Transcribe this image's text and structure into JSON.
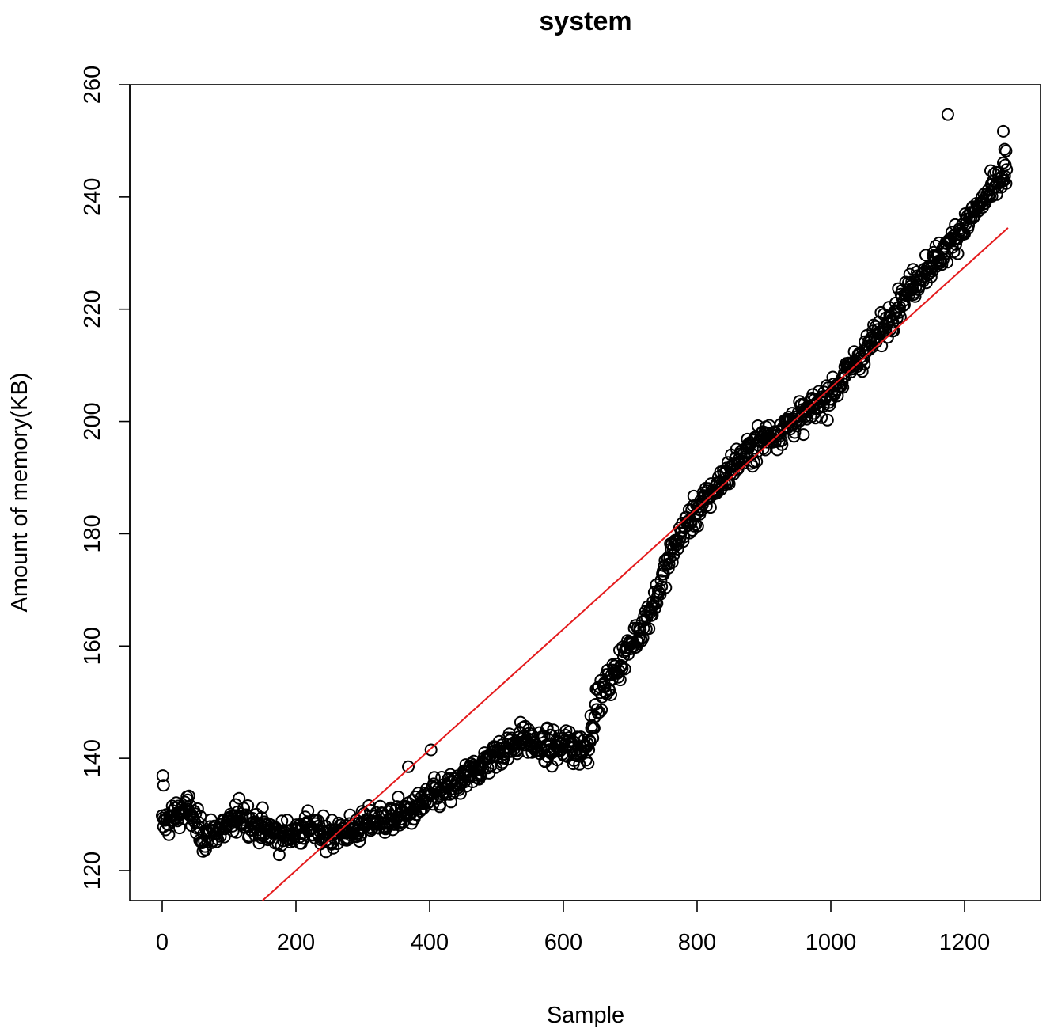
{
  "chart_data": {
    "type": "scatter",
    "title": "system",
    "xlabel": "Sample",
    "ylabel": "Amount of memory(KB)",
    "xlim": [
      -50,
      1310
    ],
    "ylim": [
      115,
      260
    ],
    "x_ticks": [
      0,
      200,
      400,
      600,
      800,
      1000,
      1200
    ],
    "x_tick_labels": [
      "0",
      "200",
      "400",
      "600",
      "800",
      "1000",
      "1200"
    ],
    "y_ticks": [
      120,
      140,
      160,
      180,
      200,
      220,
      240,
      260
    ],
    "y_tick_labels": [
      "120",
      "140",
      "160",
      "180",
      "200",
      "220",
      "240",
      "260"
    ],
    "grid": false,
    "series": [
      {
        "type": "scatter",
        "marker": "open-circle",
        "color": "#000000",
        "points_note_count": 1264,
        "anchor_points": [
          [
            0,
            128
          ],
          [
            20,
            130
          ],
          [
            40,
            131
          ],
          [
            60,
            126
          ],
          [
            80,
            127
          ],
          [
            100,
            128
          ],
          [
            120,
            130
          ],
          [
            140,
            128
          ],
          [
            160,
            127
          ],
          [
            180,
            126
          ],
          [
            200,
            127
          ],
          [
            220,
            128
          ],
          [
            240,
            126
          ],
          [
            260,
            127
          ],
          [
            280,
            127
          ],
          [
            300,
            128
          ],
          [
            320,
            129
          ],
          [
            340,
            129
          ],
          [
            360,
            130
          ],
          [
            380,
            131
          ],
          [
            400,
            133
          ],
          [
            420,
            134
          ],
          [
            440,
            135
          ],
          [
            460,
            137
          ],
          [
            480,
            139
          ],
          [
            500,
            141
          ],
          [
            520,
            142
          ],
          [
            540,
            144
          ],
          [
            560,
            142
          ],
          [
            580,
            142
          ],
          [
            600,
            142
          ],
          [
            620,
            142
          ],
          [
            635,
            142
          ],
          [
            650,
            150
          ],
          [
            680,
            156
          ],
          [
            700,
            160
          ],
          [
            720,
            164
          ],
          [
            740,
            169
          ],
          [
            760,
            176
          ],
          [
            780,
            181
          ],
          [
            800,
            184
          ],
          [
            820,
            187
          ],
          [
            840,
            190
          ],
          [
            860,
            193
          ],
          [
            880,
            195
          ],
          [
            900,
            197
          ],
          [
            920,
            198
          ],
          [
            940,
            200
          ],
          [
            960,
            201
          ],
          [
            980,
            203
          ],
          [
            1000,
            205
          ],
          [
            1020,
            208
          ],
          [
            1040,
            211
          ],
          [
            1060,
            214
          ],
          [
            1080,
            217
          ],
          [
            1100,
            221
          ],
          [
            1120,
            224
          ],
          [
            1140,
            227
          ],
          [
            1160,
            229
          ],
          [
            1180,
            232
          ],
          [
            1200,
            235
          ],
          [
            1220,
            238
          ],
          [
            1240,
            241
          ],
          [
            1260,
            244
          ]
        ],
        "outliers": [
          [
            1175,
            254.7
          ],
          [
            1258,
            251.7
          ],
          [
            1260,
            248.5
          ],
          [
            1262,
            248.2
          ],
          [
            402,
            141.5
          ],
          [
            368,
            138.5
          ],
          [
            1,
            136.9
          ],
          [
            2,
            135.2
          ]
        ]
      },
      {
        "type": "line",
        "color": "#e41a1c",
        "description_free": true,
        "x": [
          150,
          1265
        ],
        "y": [
          114.5,
          234.5
        ]
      }
    ]
  }
}
